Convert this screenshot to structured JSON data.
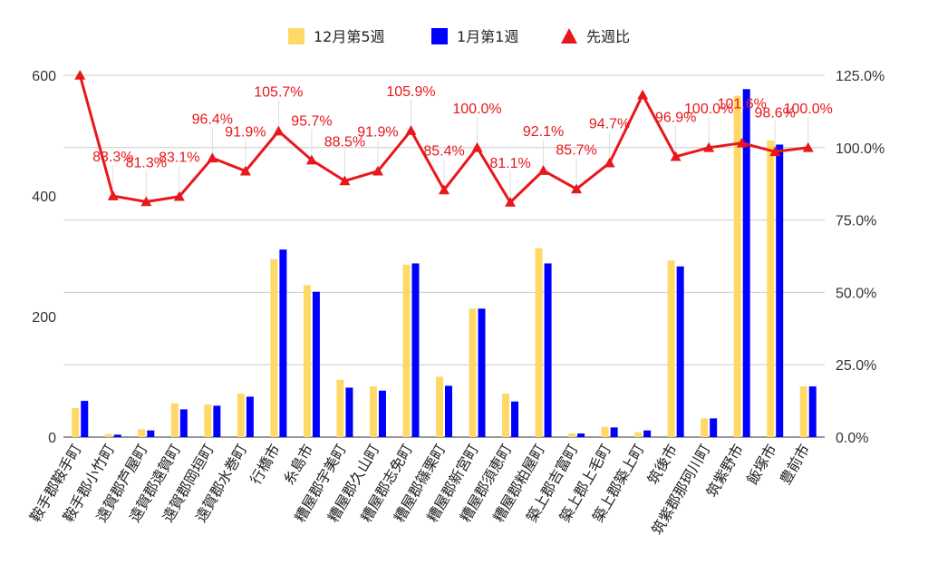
{
  "chart_data": {
    "type": "bar",
    "categories": [
      "鞍手郡鞍手町",
      "鞍手郡小竹町",
      "遠賀郡芦屋町",
      "遠賀郡遠賀町",
      "遠賀郡岡垣町",
      "遠賀郡水巻町",
      "行橋市",
      "糸島市",
      "糟屋郡宇美町",
      "糟屋郡久山町",
      "糟屋郡志免町",
      "糟屋郡篠栗町",
      "糟屋郡新宮町",
      "糟屋郡須恵町",
      "糟屋郡粕屋町",
      "築上郡吉富町",
      "築上郡上毛町",
      "築上郡築上町",
      "筑後市",
      "筑紫郡那珂川町",
      "筑紫野市",
      "飯塚市",
      "豊前市"
    ],
    "series": [
      {
        "name": "12月第5週",
        "axis": "left",
        "kind": "bar",
        "color": "#ffd966",
        "values": [
          48,
          5,
          13,
          56,
          54,
          72,
          295,
          252,
          95,
          84,
          286,
          100,
          213,
          72,
          313,
          6,
          17,
          8,
          293,
          31,
          566,
          492,
          84
        ]
      },
      {
        "name": "1月第1週",
        "axis": "left",
        "kind": "bar",
        "color": "#0000ff",
        "values": [
          60,
          4,
          11,
          46,
          52,
          67,
          311,
          241,
          82,
          77,
          288,
          85,
          213,
          59,
          288,
          6,
          16,
          11,
          283,
          31,
          577,
          485,
          84
        ]
      },
      {
        "name": "先週比",
        "axis": "right",
        "kind": "line",
        "color": "#e8171b",
        "values": [
          125.0,
          83.3,
          81.3,
          83.1,
          96.4,
          91.9,
          105.7,
          95.7,
          88.5,
          91.9,
          105.9,
          85.4,
          100.0,
          81.1,
          92.1,
          85.7,
          94.7,
          118.2,
          96.9,
          100.0,
          101.6,
          98.6,
          100.0
        ],
        "labels": [
          "",
          "83.3%",
          "81.3%",
          "83.1%",
          "96.4%",
          "91.9%",
          "105.7%",
          "95.7%",
          "88.5%",
          "91.9%",
          "105.9%",
          "85.4%",
          "100.0%",
          "81.1%",
          "92.1%",
          "85.7%",
          "94.7%",
          "",
          "96.9%",
          "100.0%",
          "101.6%",
          "98.6%",
          "100.0%"
        ]
      }
    ],
    "y_left": {
      "ticks": [
        "0",
        "200",
        "400",
        "600"
      ],
      "min": 0,
      "max": 600
    },
    "y_right": {
      "ticks": [
        "0.0%",
        "25.0%",
        "50.0%",
        "75.0%",
        "100.0%",
        "125.0%"
      ],
      "min": 0,
      "max": 125
    },
    "grid": true,
    "legend_position": "top"
  }
}
